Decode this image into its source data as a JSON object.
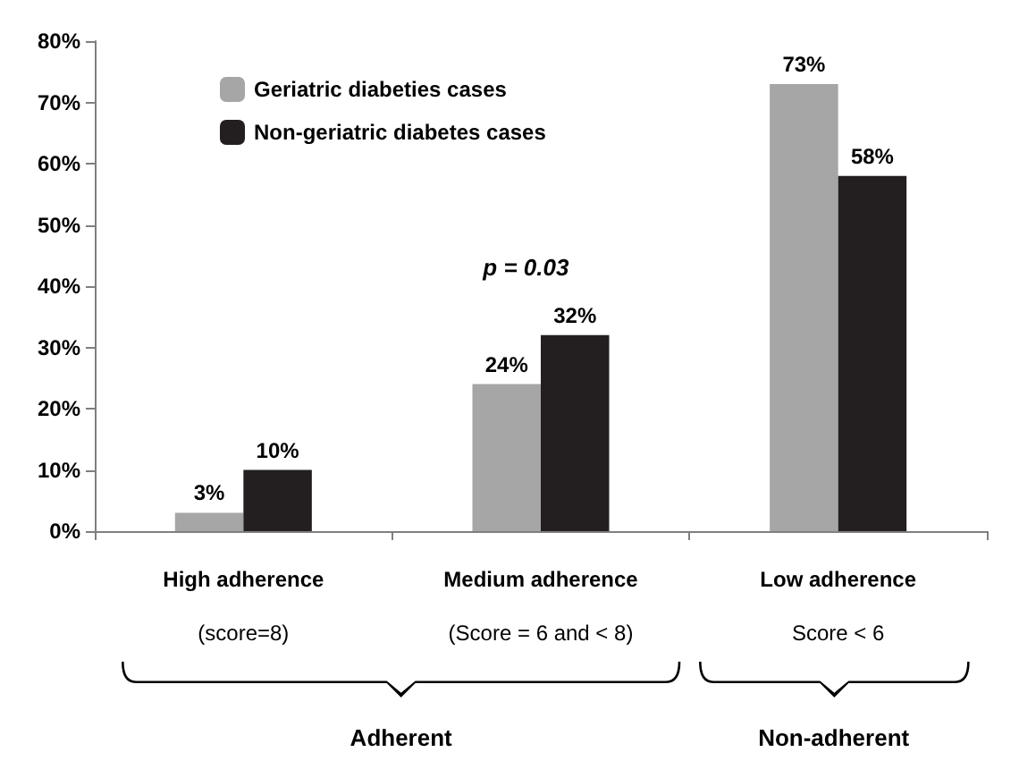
{
  "chart_data": {
    "type": "bar",
    "categories": [
      "High adherence\n(score=8)",
      "Medium adherence\n(Score = 6 and < 8)",
      "Low adherence\nScore < 6"
    ],
    "series": [
      {
        "name": "Geriatric diabeties cases",
        "color": "#a6a6a6",
        "values": [
          3,
          24,
          73
        ],
        "value_labels": [
          "3%",
          "24%",
          "73%"
        ]
      },
      {
        "name": "Non-geriatric diabetes cases",
        "color": "#231f20",
        "values": [
          10,
          32,
          58
        ],
        "value_labels": [
          "10%",
          "32%",
          "58%"
        ]
      }
    ],
    "ylim": [
      0,
      80
    ],
    "yticks": [
      {
        "value": 0,
        "label": "0%"
      },
      {
        "value": 10,
        "label": "10%"
      },
      {
        "value": 20,
        "label": "20%"
      },
      {
        "value": 30,
        "label": "30%"
      },
      {
        "value": 40,
        "label": "40%"
      },
      {
        "value": 50,
        "label": "50%"
      },
      {
        "value": 60,
        "label": "60%"
      },
      {
        "value": 70,
        "label": "70%"
      },
      {
        "value": 80,
        "label": "80%"
      }
    ],
    "annotations": [
      "p = 0.03",
      "Adherent",
      "Non-adherent"
    ],
    "grid": false,
    "legend": "top left"
  }
}
